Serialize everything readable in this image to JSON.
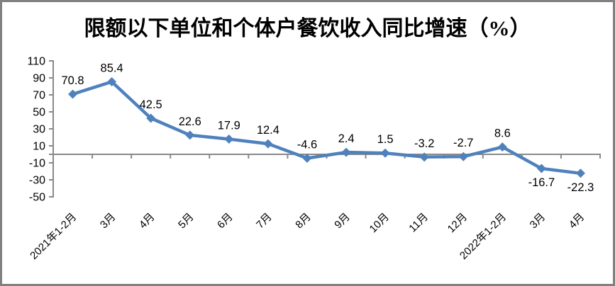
{
  "frame": {
    "border_color": "#808080",
    "background_color": "#FFFFFF"
  },
  "chart_data": {
    "type": "line",
    "title": "限额以下单位和个体户餐饮收入同比增速（%）",
    "categories": [
      "2021年1-2月",
      "3月",
      "4月",
      "5月",
      "6月",
      "7月",
      "8月",
      "9月",
      "10月",
      "11月",
      "12月",
      "2022年1-2月",
      "3月",
      "4月"
    ],
    "series": [
      {
        "name": "限额以下单位和个体户餐饮收入同比增速",
        "values": [
          70.8,
          85.4,
          42.5,
          22.6,
          17.9,
          12.4,
          -4.6,
          2.4,
          1.5,
          -3.2,
          -2.7,
          8.6,
          -16.7,
          -22.3
        ],
        "color": "#4F81BD",
        "marker": "diamond"
      }
    ],
    "data_labels": [
      "70.8",
      "85.4",
      "42.5",
      "22.6",
      "17.9",
      "12.4",
      "-4.6",
      "2.4",
      "1.5",
      "-3.2",
      "-2.7",
      "8.6",
      "-16.7",
      "-22.3"
    ],
    "data_label_positions": [
      "above",
      "above",
      "above",
      "above",
      "above",
      "above",
      "above",
      "above",
      "above",
      "above",
      "above",
      "above",
      "below",
      "below"
    ],
    "xlabel": "",
    "ylabel": "",
    "ylim": [
      -50,
      110
    ],
    "yticks": [
      110,
      90,
      70,
      50,
      30,
      10,
      -10,
      -30,
      -50
    ],
    "x_axis_position": 0,
    "grid": false,
    "legend": "none",
    "axis_color": "#898989",
    "text_color": "#000000"
  }
}
